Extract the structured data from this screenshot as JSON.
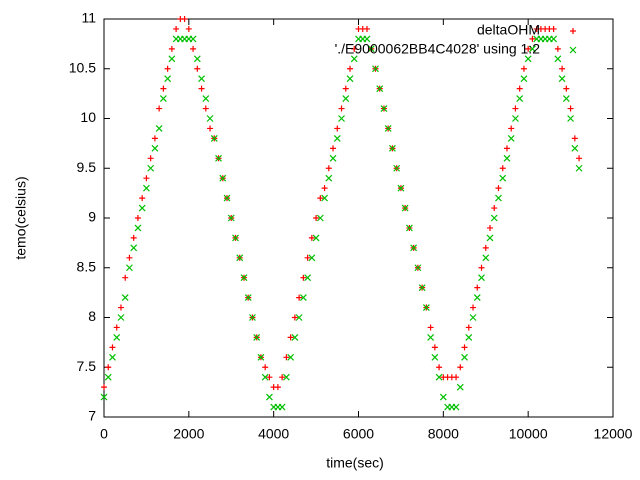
{
  "chart_data": {
    "type": "scatter",
    "xlabel": "time(sec)",
    "ylabel": "temo(celsius)",
    "xlim": [
      0,
      12000
    ],
    "xticks": [
      0,
      2000,
      4000,
      6000,
      8000,
      10000,
      12000
    ],
    "ylim": [
      7,
      11
    ],
    "yticks": [
      7,
      7.5,
      8,
      8.5,
      9,
      9.5,
      10,
      10.5,
      11
    ],
    "grid": false,
    "legend": "top-right",
    "x": [
      0,
      100,
      200,
      300,
      400,
      500,
      600,
      700,
      800,
      900,
      1000,
      1100,
      1200,
      1300,
      1400,
      1500,
      1600,
      1700,
      1800,
      1900,
      2000,
      2100,
      2200,
      2300,
      2400,
      2500,
      2600,
      2700,
      2800,
      2900,
      3000,
      3100,
      3200,
      3300,
      3400,
      3500,
      3600,
      3700,
      3800,
      3900,
      4000,
      4100,
      4200,
      4300,
      4400,
      4500,
      4600,
      4700,
      4800,
      4900,
      5000,
      5100,
      5200,
      5300,
      5400,
      5500,
      5600,
      5700,
      5800,
      5900,
      6000,
      6100,
      6200,
      6300,
      6400,
      6500,
      6600,
      6700,
      6800,
      6900,
      7000,
      7100,
      7200,
      7300,
      7400,
      7500,
      7600,
      7700,
      7800,
      7900,
      8000,
      8100,
      8200,
      8300,
      8400,
      8500,
      8600,
      8700,
      8800,
      8900,
      9000,
      9100,
      9200,
      9300,
      9400,
      9500,
      9600,
      9700,
      9800,
      9900,
      10000,
      10100,
      10200,
      10300,
      10400,
      10500,
      10600,
      10700,
      10800,
      10900,
      11000,
      11100,
      11200
    ],
    "series": [
      {
        "name": "deltaOHM",
        "color": "#ff0000",
        "marker": "plus",
        "values": [
          7.3,
          7.5,
          7.7,
          7.9,
          8.1,
          8.4,
          8.6,
          8.8,
          9.0,
          9.2,
          9.4,
          9.6,
          9.8,
          10.1,
          10.3,
          10.5,
          10.7,
          10.9,
          11.0,
          11.0,
          10.9,
          10.7,
          10.5,
          10.3,
          10.1,
          9.9,
          9.8,
          9.6,
          9.4,
          9.2,
          9.0,
          8.8,
          8.6,
          8.4,
          8.2,
          8.0,
          7.8,
          7.6,
          7.5,
          7.4,
          7.3,
          7.3,
          7.4,
          7.6,
          7.8,
          8.0,
          8.2,
          8.4,
          8.6,
          8.8,
          9.0,
          9.2,
          9.3,
          9.5,
          9.7,
          9.9,
          10.1,
          10.3,
          10.5,
          10.7,
          10.9,
          10.9,
          10.9,
          10.7,
          10.5,
          10.3,
          10.1,
          9.9,
          9.7,
          9.5,
          9.3,
          9.1,
          8.9,
          8.7,
          8.5,
          8.3,
          8.1,
          7.9,
          7.7,
          7.5,
          7.4,
          7.4,
          7.4,
          7.4,
          7.5,
          7.7,
          7.9,
          8.1,
          8.3,
          8.5,
          8.7,
          8.9,
          9.1,
          9.3,
          9.5,
          9.7,
          9.9,
          10.1,
          10.3,
          10.5,
          10.7,
          10.8,
          10.9,
          10.9,
          10.9,
          10.9,
          10.9,
          10.7,
          10.5,
          10.3,
          10.1,
          9.8,
          9.6
        ]
      },
      {
        "name": "'./E9000062BB4C4028' using 1:2",
        "color": "#00c000",
        "marker": "cross",
        "values": [
          7.2,
          7.4,
          7.6,
          7.8,
          8.0,
          8.2,
          8.5,
          8.7,
          8.9,
          9.1,
          9.3,
          9.5,
          9.7,
          9.9,
          10.2,
          10.4,
          10.6,
          10.8,
          10.8,
          10.8,
          10.8,
          10.8,
          10.6,
          10.4,
          10.2,
          10.0,
          9.8,
          9.6,
          9.4,
          9.2,
          9.0,
          8.8,
          8.6,
          8.4,
          8.2,
          8.0,
          7.8,
          7.6,
          7.4,
          7.2,
          7.1,
          7.1,
          7.1,
          7.4,
          7.6,
          7.8,
          8.0,
          8.2,
          8.4,
          8.6,
          8.8,
          9.0,
          9.2,
          9.4,
          9.6,
          9.8,
          10.0,
          10.2,
          10.4,
          10.6,
          10.8,
          10.8,
          10.8,
          10.7,
          10.5,
          10.3,
          10.1,
          9.9,
          9.7,
          9.5,
          9.3,
          9.1,
          8.9,
          8.7,
          8.5,
          8.3,
          8.1,
          7.8,
          7.6,
          7.4,
          7.2,
          7.1,
          7.1,
          7.1,
          7.3,
          7.6,
          7.8,
          8.0,
          8.2,
          8.4,
          8.6,
          8.8,
          9.0,
          9.2,
          9.4,
          9.6,
          9.8,
          10.0,
          10.2,
          10.4,
          10.6,
          10.7,
          10.8,
          10.8,
          10.8,
          10.8,
          10.8,
          10.6,
          10.4,
          10.2,
          10.0,
          9.7,
          9.5
        ]
      }
    ]
  }
}
